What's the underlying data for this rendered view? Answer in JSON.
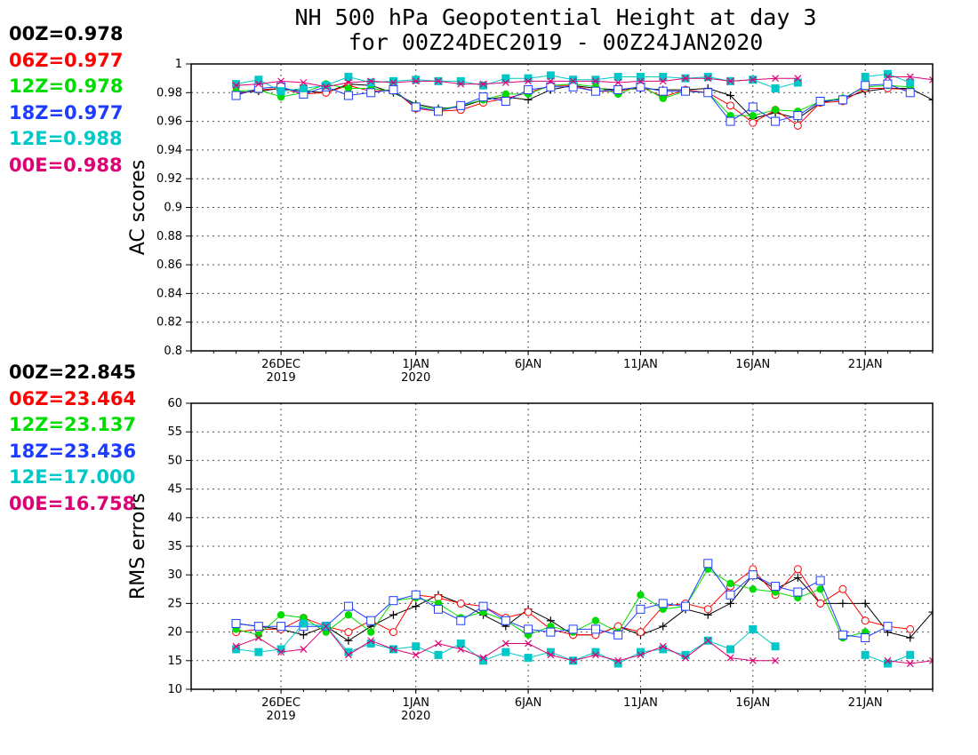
{
  "page": {
    "title_line1": "NH 500 hPa Geopotential Height at day 3",
    "title_line2": "for 00Z24DEC2019 - 00Z24JAN2020"
  },
  "legend_ac": [
    {
      "label": "00Z=0.978",
      "color": "#000000"
    },
    {
      "label": "06Z=0.977",
      "color": "#ff0000"
    },
    {
      "label": "12Z=0.978",
      "color": "#00dc00"
    },
    {
      "label": "18Z=0.977",
      "color": "#1e3cff"
    },
    {
      "label": "12E=0.988",
      "color": "#00c8c8"
    },
    {
      "label": "00E=0.988",
      "color": "#dc0074"
    }
  ],
  "legend_rms": [
    {
      "label": "00Z=22.845",
      "color": "#000000"
    },
    {
      "label": "06Z=23.464",
      "color": "#ff0000"
    },
    {
      "label": "12Z=23.137",
      "color": "#00dc00"
    },
    {
      "label": "18Z=23.436",
      "color": "#1e3cff"
    },
    {
      "label": "12E=17.000",
      "color": "#00c8c8"
    },
    {
      "label": "00E=16.758",
      "color": "#dc0074"
    }
  ],
  "chart_data": [
    {
      "type": "line",
      "ylabel": "AC scores",
      "ylim": [
        0.8,
        1.0
      ],
      "yticks": [
        0.8,
        0.82,
        0.84,
        0.86,
        0.88,
        0.9,
        0.92,
        0.94,
        0.96,
        0.98,
        1
      ],
      "ytick_labels": [
        "0.8",
        "0.82",
        "0.84",
        "0.86",
        "0.88",
        "0.9",
        "0.92",
        "0.94",
        "0.96",
        "0.98",
        "1"
      ],
      "xlim": [
        "2019-12-22",
        "2020-01-24"
      ],
      "xticks": [
        {
          "date": "2019-12-26",
          "label": "26DEC",
          "sub": "2019"
        },
        {
          "date": "2020-01-01",
          "label": "1JAN",
          "sub": "2020"
        },
        {
          "date": "2020-01-06",
          "label": "6JAN",
          "sub": ""
        },
        {
          "date": "2020-01-11",
          "label": "11JAN",
          "sub": ""
        },
        {
          "date": "2020-01-16",
          "label": "16JAN",
          "sub": ""
        },
        {
          "date": "2020-01-21",
          "label": "21JAN",
          "sub": ""
        }
      ],
      "grid": true,
      "x": [
        "2019-12-24",
        "2019-12-25",
        "2019-12-26",
        "2019-12-27",
        "2019-12-28",
        "2019-12-29",
        "2019-12-30",
        "2019-12-31",
        "2020-01-01",
        "2020-01-02",
        "2020-01-03",
        "2020-01-04",
        "2020-01-05",
        "2020-01-06",
        "2020-01-07",
        "2020-01-08",
        "2020-01-09",
        "2020-01-10",
        "2020-01-11",
        "2020-01-12",
        "2020-01-13",
        "2020-01-14",
        "2020-01-15",
        "2020-01-16",
        "2020-01-17",
        "2020-01-18",
        "2020-01-19",
        "2020-01-20",
        "2020-01-21",
        "2020-01-22",
        "2020-01-23",
        "2020-01-24"
      ],
      "series": [
        {
          "name": "00Z",
          "color": "#000000",
          "marker": "plus",
          "values": [
            0.98,
            0.981,
            0.983,
            0.981,
            0.98,
            0.986,
            0.985,
            0.98,
            0.972,
            0.969,
            0.97,
            0.975,
            0.977,
            0.975,
            0.982,
            0.985,
            0.983,
            0.982,
            0.983,
            0.982,
            0.982,
            0.983,
            0.978,
            0.962,
            0.966,
            0.962,
            0.973,
            0.976,
            0.981,
            0.983,
            0.983,
            0.975
          ]
        },
        {
          "name": "06Z",
          "color": "#ff0000",
          "marker": "circle",
          "values": [
            0.979,
            0.982,
            0.983,
            0.979,
            0.98,
            0.985,
            0.981,
            0.982,
            0.969,
            0.967,
            0.968,
            0.973,
            0.976,
            0.98,
            0.985,
            0.985,
            0.981,
            0.981,
            0.984,
            0.977,
            0.982,
            0.98,
            0.971,
            0.959,
            0.968,
            0.957,
            0.973,
            0.974,
            0.983,
            0.983,
            0.982,
            null
          ]
        },
        {
          "name": "12Z",
          "color": "#00dc00",
          "marker": "filledcircle",
          "values": [
            0.981,
            0.982,
            0.977,
            0.98,
            0.986,
            0.983,
            0.983,
            0.981,
            0.971,
            0.968,
            0.971,
            0.975,
            0.979,
            0.979,
            0.985,
            0.986,
            0.984,
            0.979,
            0.985,
            0.976,
            0.981,
            0.98,
            0.964,
            0.964,
            0.968,
            0.967,
            0.974,
            0.976,
            0.984,
            0.985,
            0.984,
            null
          ]
        },
        {
          "name": "18Z",
          "color": "#1e3cff",
          "marker": "square",
          "values": [
            0.978,
            0.983,
            0.984,
            0.979,
            0.984,
            0.978,
            0.98,
            0.982,
            0.97,
            0.967,
            0.971,
            0.977,
            0.974,
            0.982,
            0.984,
            0.984,
            0.981,
            0.982,
            0.984,
            0.981,
            0.981,
            0.98,
            0.96,
            0.97,
            0.96,
            0.964,
            0.974,
            0.975,
            0.985,
            0.986,
            0.98,
            null
          ]
        },
        {
          "name": "12E",
          "color": "#00c8c8",
          "marker": "filledsquare",
          "values": [
            0.986,
            0.989,
            0.981,
            0.983,
            0.985,
            0.991,
            0.987,
            0.988,
            0.989,
            0.988,
            0.988,
            0.985,
            0.99,
            0.99,
            0.992,
            0.989,
            0.989,
            0.991,
            0.991,
            0.991,
            0.99,
            0.991,
            0.988,
            0.989,
            0.983,
            0.987,
            null,
            null,
            0.991,
            0.993,
            0.987,
            null
          ]
        },
        {
          "name": "00E",
          "color": "#dc0074",
          "marker": "x",
          "values": [
            0.985,
            0.986,
            0.988,
            0.987,
            0.984,
            0.987,
            0.988,
            0.987,
            0.988,
            0.988,
            0.986,
            0.986,
            0.987,
            0.988,
            0.988,
            0.988,
            0.988,
            0.987,
            0.988,
            0.988,
            0.99,
            0.99,
            0.988,
            0.989,
            0.99,
            0.99,
            null,
            null,
            null,
            0.991,
            0.991,
            0.989
          ]
        }
      ]
    },
    {
      "type": "line",
      "ylabel": "RMS errors",
      "ylim": [
        10,
        60
      ],
      "yticks": [
        10,
        15,
        20,
        25,
        30,
        35,
        40,
        45,
        50,
        55,
        60
      ],
      "ytick_labels": [
        "10",
        "15",
        "20",
        "25",
        "30",
        "35",
        "40",
        "45",
        "50",
        "55",
        "60"
      ],
      "xlim": [
        "2019-12-22",
        "2020-01-24"
      ],
      "xticks": [
        {
          "date": "2019-12-26",
          "label": "26DEC",
          "sub": "2019"
        },
        {
          "date": "2020-01-01",
          "label": "1JAN",
          "sub": "2020"
        },
        {
          "date": "2020-01-06",
          "label": "6JAN",
          "sub": ""
        },
        {
          "date": "2020-01-11",
          "label": "11JAN",
          "sub": ""
        },
        {
          "date": "2020-01-16",
          "label": "16JAN",
          "sub": ""
        },
        {
          "date": "2020-01-21",
          "label": "21JAN",
          "sub": ""
        }
      ],
      "grid": true,
      "x": [
        "2019-12-24",
        "2019-12-25",
        "2019-12-26",
        "2019-12-27",
        "2019-12-28",
        "2019-12-29",
        "2019-12-30",
        "2019-12-31",
        "2020-01-01",
        "2020-01-02",
        "2020-01-03",
        "2020-01-04",
        "2020-01-05",
        "2020-01-06",
        "2020-01-07",
        "2020-01-08",
        "2020-01-09",
        "2020-01-10",
        "2020-01-11",
        "2020-01-12",
        "2020-01-13",
        "2020-01-14",
        "2020-01-15",
        "2020-01-16",
        "2020-01-17",
        "2020-01-18",
        "2020-01-19",
        "2020-01-20",
        "2020-01-21",
        "2020-01-22",
        "2020-01-23",
        "2020-01-24"
      ],
      "series": [
        {
          "name": "00Z",
          "color": "#000000",
          "marker": "plus",
          "values": [
            21.5,
            21.0,
            20.5,
            19.5,
            21.0,
            18.5,
            21.0,
            23.0,
            24.5,
            26.5,
            25.0,
            23.0,
            21.0,
            24.0,
            22.0,
            19.5,
            19.5,
            21.0,
            19.5,
            21.0,
            24.0,
            23.0,
            25.0,
            30.0,
            27.5,
            29.5,
            25.0,
            25.0,
            25.0,
            20.0,
            19.0,
            23.5
          ]
        },
        {
          "name": "06Z",
          "color": "#ff0000",
          "marker": "circle",
          "values": [
            20.0,
            20.5,
            20.5,
            22.5,
            21.0,
            20.0,
            22.0,
            20.0,
            26.5,
            26.0,
            25.0,
            24.5,
            22.5,
            23.5,
            20.5,
            19.5,
            19.5,
            21.0,
            20.0,
            24.5,
            25.0,
            24.0,
            28.0,
            31.0,
            26.5,
            31.0,
            25.0,
            27.5,
            22.0,
            21.0,
            20.5,
            null
          ]
        },
        {
          "name": "12Z",
          "color": "#00dc00",
          "marker": "filledcircle",
          "values": [
            20.5,
            19.5,
            23.0,
            22.5,
            20.0,
            23.0,
            20.0,
            25.5,
            26.0,
            25.0,
            22.5,
            23.5,
            22.0,
            19.5,
            21.0,
            20.0,
            22.0,
            20.0,
            26.5,
            24.0,
            24.5,
            31.0,
            28.5,
            27.5,
            27.0,
            26.0,
            27.5,
            19.0,
            20.0,
            null,
            null,
            null
          ]
        },
        {
          "name": "18Z",
          "color": "#1e3cff",
          "marker": "square",
          "values": [
            21.5,
            21.0,
            21.0,
            21.0,
            21.0,
            24.5,
            22.0,
            25.5,
            26.5,
            24.0,
            22.0,
            24.5,
            22.0,
            20.5,
            20.0,
            20.5,
            20.5,
            19.5,
            24.0,
            25.0,
            24.5,
            32.0,
            26.5,
            30.0,
            28.0,
            27.0,
            29.0,
            19.5,
            19.0,
            21.0,
            null,
            null
          ]
        },
        {
          "name": "12E",
          "color": "#00c8c8",
          "marker": "filledsquare",
          "values": [
            17.0,
            16.5,
            17.0,
            21.5,
            21.0,
            16.5,
            18.0,
            17.0,
            17.5,
            16.0,
            18.0,
            15.0,
            16.5,
            15.5,
            16.5,
            15.0,
            16.5,
            14.5,
            16.5,
            17.0,
            16.0,
            18.5,
            17.0,
            20.5,
            17.5,
            null,
            null,
            null,
            16.0,
            14.5,
            16.0,
            null
          ]
        },
        {
          "name": "00E",
          "color": "#dc0074",
          "marker": "x",
          "values": [
            17.5,
            19.0,
            16.5,
            17.0,
            21.0,
            16.0,
            18.5,
            17.0,
            16.0,
            18.0,
            17.0,
            15.5,
            18.0,
            18.0,
            16.0,
            15.0,
            16.0,
            15.0,
            16.0,
            17.5,
            15.5,
            18.5,
            15.5,
            15.0,
            15.0,
            null,
            null,
            null,
            null,
            15.0,
            14.5,
            15.0
          ]
        }
      ]
    }
  ]
}
